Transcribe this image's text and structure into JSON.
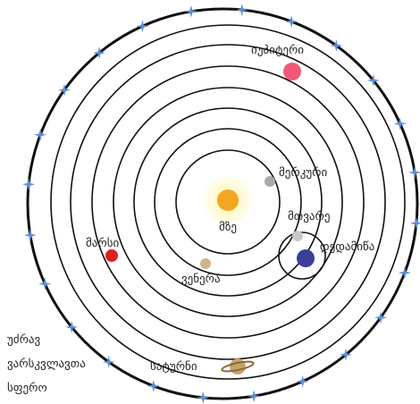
{
  "labels": {
    "jupiter": "იუპიტერი",
    "mercury": "მერკური",
    "sun": "მზე",
    "moon": "მთვარე",
    "earth": "დედამიწა",
    "mars": "მარსი",
    "venus": "ვენერა",
    "saturn": "სატურნი",
    "fixed_stars": [
      "უძრავ",
      "ვარსკვლავთა",
      "სფერო"
    ]
  }
}
